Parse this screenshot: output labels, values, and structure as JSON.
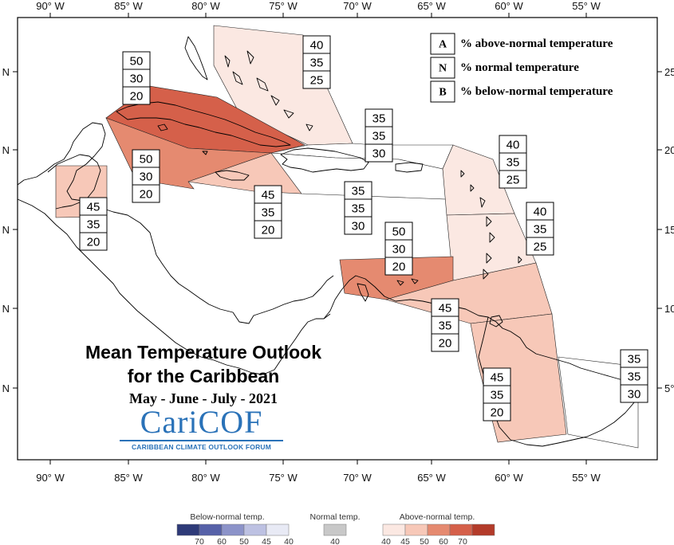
{
  "map": {
    "title_line1": "Mean Temperature Outlook",
    "title_line2": "for the Caribbean",
    "period": "May - June - July - 2021",
    "logo_main": "CariCOF",
    "logo_sub": "CARIBBEAN CLIMATE OUTLOOK FORUM",
    "x_ticks": [
      "90° W",
      "85° W",
      "80° W",
      "75° W",
      "70° W",
      "65° W",
      "60° W",
      "55° W"
    ],
    "y_ticks_left": [
      "N",
      "N",
      "N",
      "N",
      "N"
    ],
    "y_ticks_right": [
      "25°",
      "20°",
      "15°",
      "10°",
      "5°"
    ]
  },
  "legend": {
    "items": [
      {
        "key": "A",
        "text": "% above-normal temperature"
      },
      {
        "key": "N",
        "text": "% normal temperature"
      },
      {
        "key": "B",
        "text": "% below-normal temperature"
      }
    ]
  },
  "colors": {
    "above_40": "#fbe8e2",
    "above_45": "#f7c8b8",
    "above_50": "#e58a70",
    "above_60": "#d5604a",
    "above_70": "#b33b2a",
    "below_70": "#2e3a78",
    "below_60": "#5661a8",
    "below_50": "#8c93c9",
    "below_45": "#bdc1e2",
    "below_40": "#e8eaf5",
    "normal_40": "#c8c8c8"
  },
  "regions": [
    {
      "id": "bahamas",
      "values": [
        "40",
        "35",
        "25"
      ]
    },
    {
      "id": "cuba",
      "values": [
        "50",
        "30",
        "20"
      ]
    },
    {
      "id": "cayman",
      "values": [
        "50",
        "30",
        "20"
      ]
    },
    {
      "id": "belize",
      "values": [
        "45",
        "35",
        "20"
      ]
    },
    {
      "id": "jamaica",
      "values": [
        "45",
        "35",
        "20"
      ]
    },
    {
      "id": "turks",
      "values": [
        "35",
        "35",
        "30"
      ]
    },
    {
      "id": "hispaniola",
      "values": [
        "35",
        "35",
        "30"
      ]
    },
    {
      "id": "leeward",
      "values": [
        "40",
        "35",
        "25"
      ]
    },
    {
      "id": "windward",
      "values": [
        "40",
        "35",
        "25"
      ]
    },
    {
      "id": "abc",
      "values": [
        "50",
        "30",
        "20"
      ]
    },
    {
      "id": "trinidad",
      "values": [
        "45",
        "35",
        "20"
      ]
    },
    {
      "id": "guianas",
      "values": [
        "45",
        "35",
        "20"
      ]
    },
    {
      "id": "fguiana",
      "values": [
        "35",
        "35",
        "30"
      ]
    }
  ],
  "colorbar": {
    "below_title": "Below-normal temp.",
    "normal_title": "Normal temp.",
    "above_title": "Above-normal temp.",
    "below_ticks": [
      "70",
      "60",
      "50",
      "45",
      "40"
    ],
    "normal_ticks": [
      "40"
    ],
    "above_ticks": [
      "40",
      "45",
      "50",
      "60",
      "70"
    ]
  }
}
